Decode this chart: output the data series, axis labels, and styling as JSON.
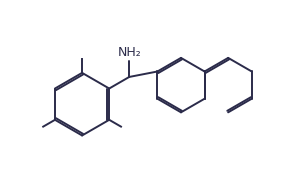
{
  "bg_color": "#ffffff",
  "line_color": "#2b2b4a",
  "line_width": 1.4,
  "nh2_label": "NH₂",
  "font_size": 9
}
